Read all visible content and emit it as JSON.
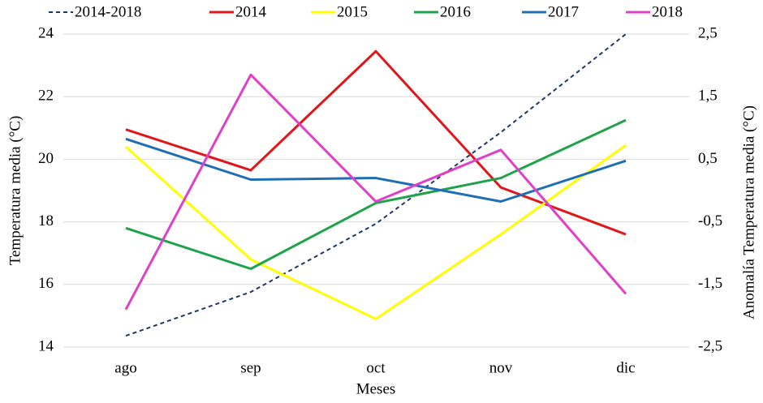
{
  "chart_data": {
    "type": "line",
    "categories": [
      "ago",
      "sep",
      "oct",
      "nov",
      "dic"
    ],
    "xlabel": "Meses",
    "ylabel": "Temperatura media (°C)",
    "y2label": "Anomalía Temperatura media (°C)",
    "ylim": [
      14,
      24
    ],
    "yticks": [
      14,
      16,
      18,
      20,
      22,
      24
    ],
    "y2lim": [
      -2.5,
      2.5
    ],
    "y2ticks": [
      {
        "value": -2.5,
        "label": "-2,5"
      },
      {
        "value": -1.5,
        "label": "-1,5"
      },
      {
        "value": -0.5,
        "label": "-0,5"
      },
      {
        "value": 0.5,
        "label": "0,5"
      },
      {
        "value": 1.5,
        "label": "1,5"
      },
      {
        "value": 2.5,
        "label": "2,5"
      }
    ],
    "grid": true,
    "legend": "top",
    "series": [
      {
        "name": "2014-2018",
        "color": "#1f3864",
        "line_style": "dashed",
        "axis": "y2",
        "values": [
          -2.32,
          -1.62,
          -0.53,
          0.93,
          2.5
        ]
      },
      {
        "name": "2014",
        "color": "#e0161b",
        "values": [
          20.95,
          19.65,
          23.45,
          19.1,
          17.6
        ]
      },
      {
        "name": "2015",
        "color": "#ffff00",
        "values": [
          20.4,
          16.8,
          14.9,
          17.6,
          20.45
        ]
      },
      {
        "name": "2016",
        "color": "#1fa34a",
        "values": [
          17.8,
          16.5,
          18.6,
          19.4,
          21.25
        ]
      },
      {
        "name": "2017",
        "color": "#1f6fb5",
        "values": [
          20.65,
          19.35,
          19.4,
          18.65,
          19.95
        ]
      },
      {
        "name": "2018",
        "color": "#e040c8",
        "values": [
          15.2,
          22.7,
          18.65,
          20.3,
          15.7
        ]
      }
    ]
  }
}
